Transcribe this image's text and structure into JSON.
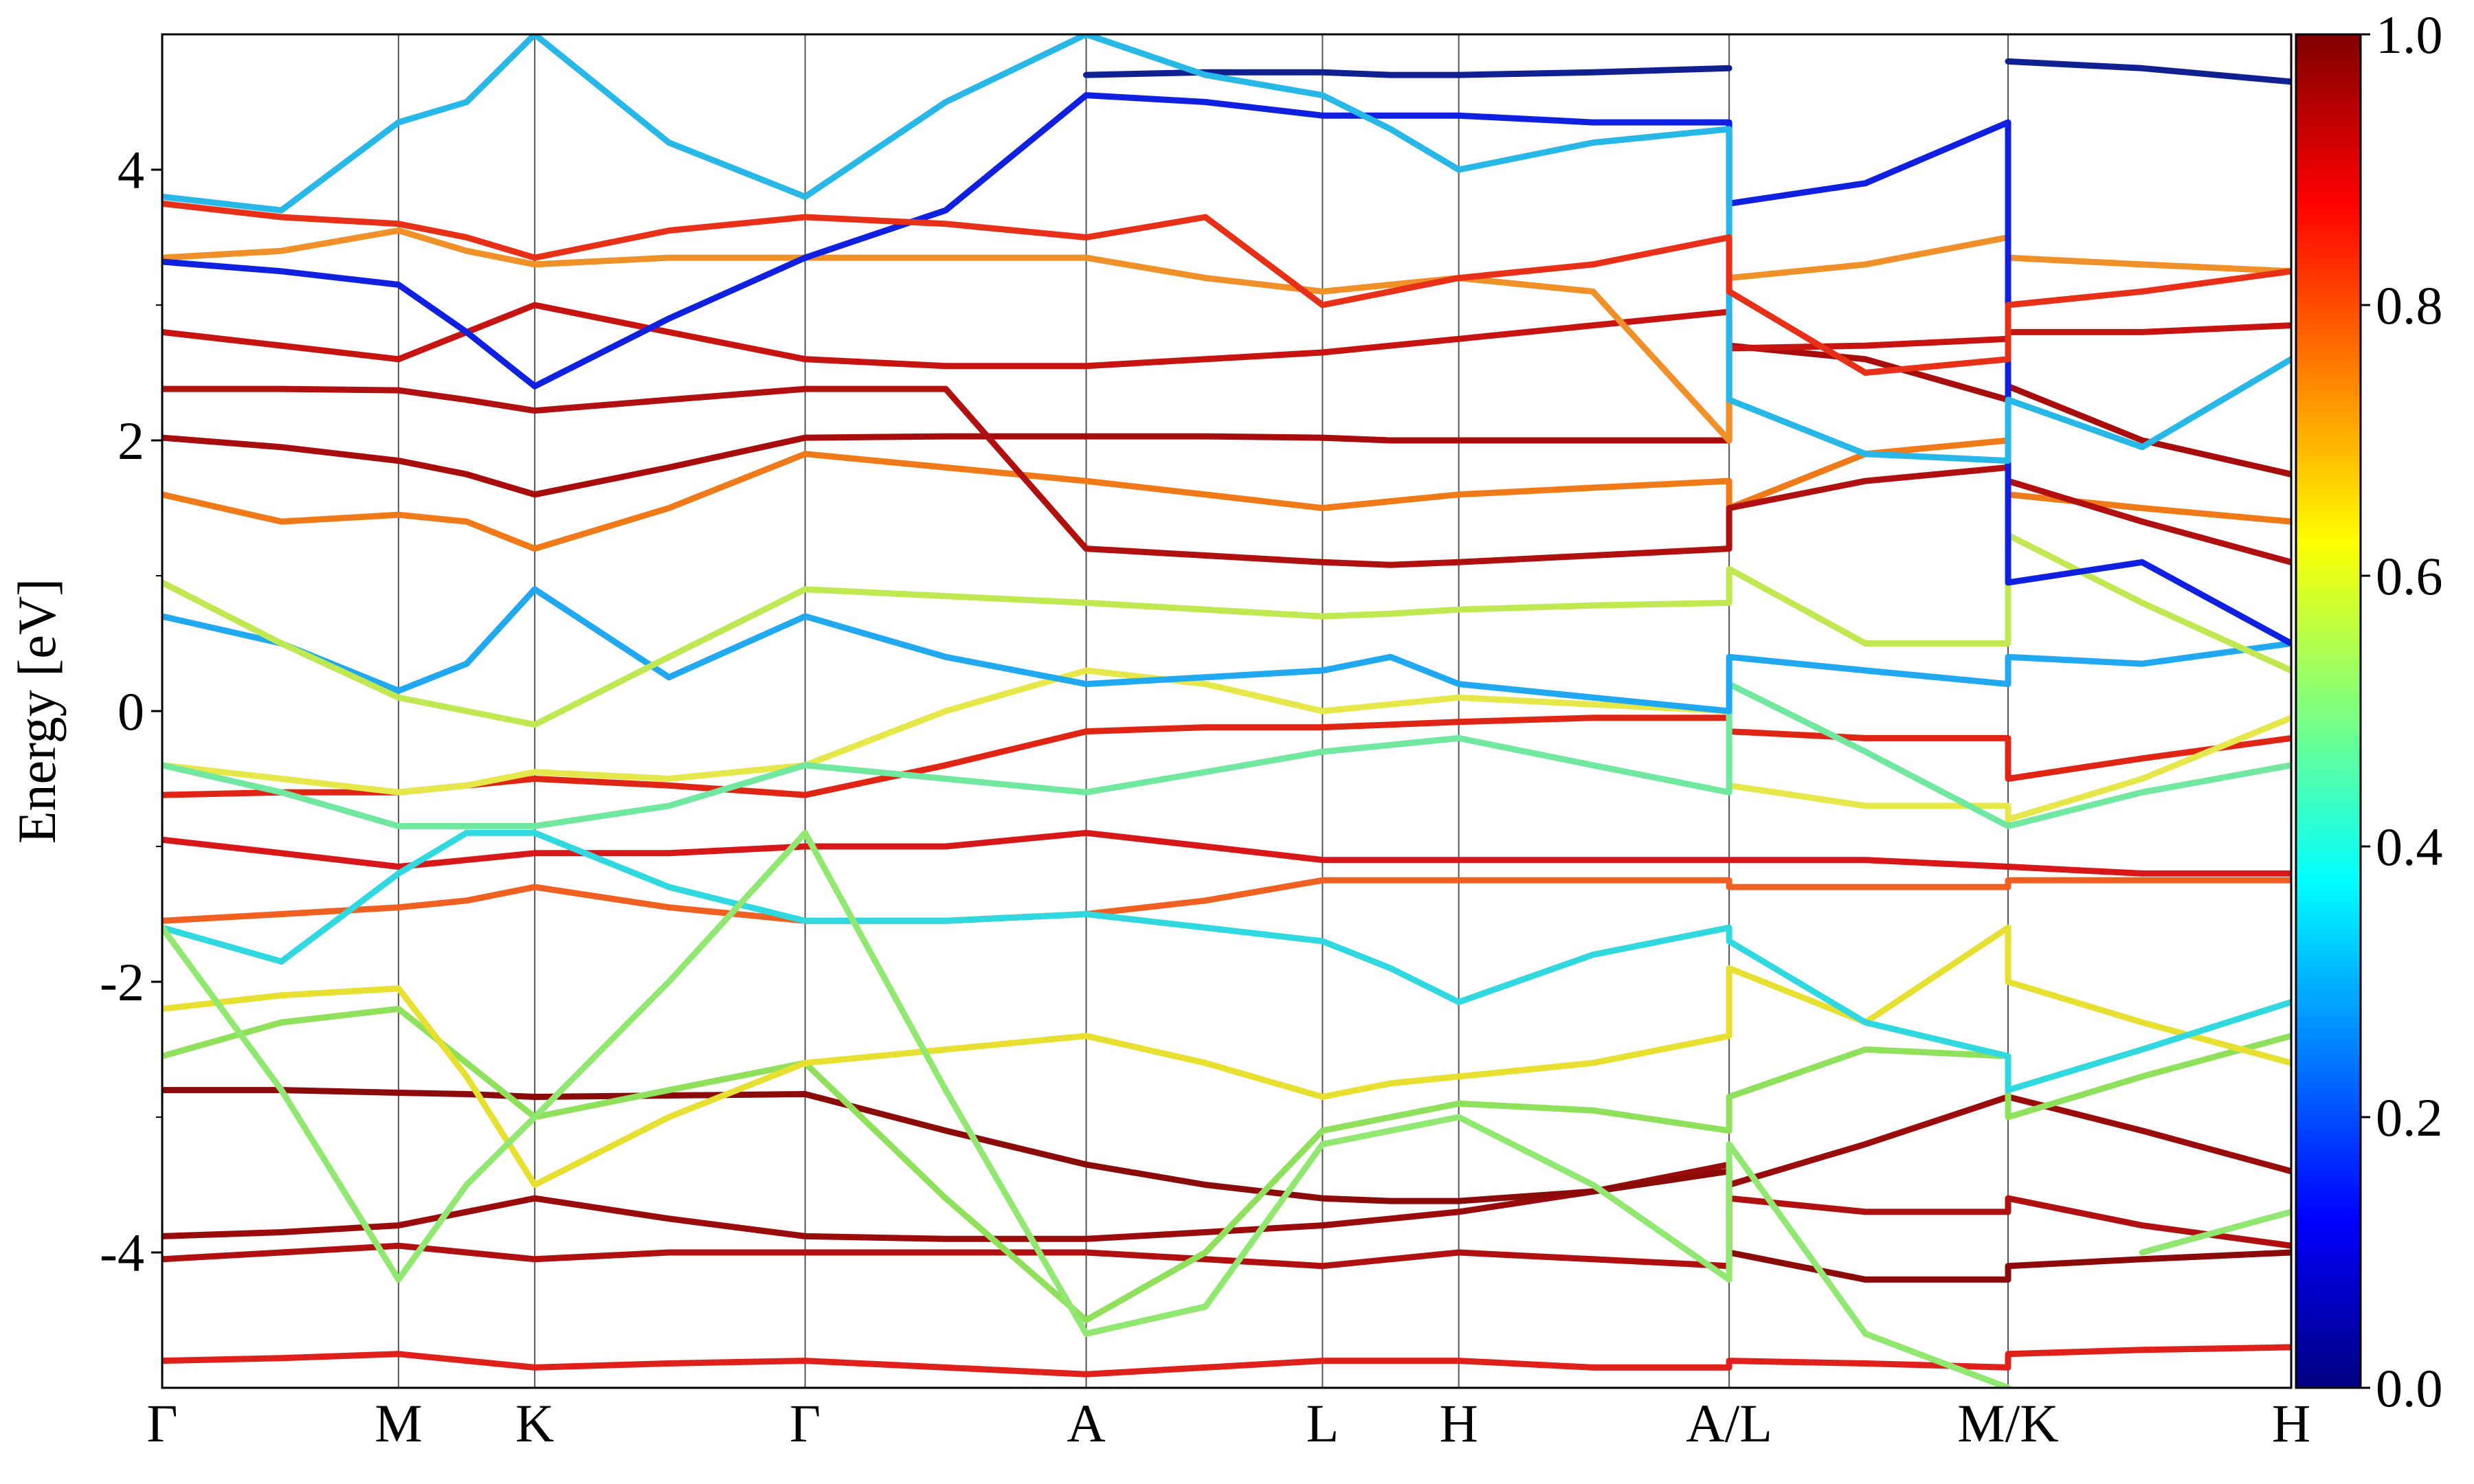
{
  "chart_data": {
    "type": "line",
    "ylabel": "Energy [eV]",
    "xlim": [
      0,
      1
    ],
    "xticks": [
      {
        "value": 0,
        "label": "Γ"
      },
      {
        "value": 0.111,
        "label": "M"
      },
      {
        "value": 0.175,
        "label": "K"
      },
      {
        "value": 0.302,
        "label": "Γ"
      },
      {
        "value": 0.434,
        "label": "A"
      },
      {
        "value": 0.545,
        "label": "L"
      },
      {
        "value": 0.609,
        "label": "H"
      },
      {
        "value": 0.736,
        "label": "A/L"
      },
      {
        "value": 0.867,
        "label": "M/K"
      },
      {
        "value": 1,
        "label": "H"
      }
    ],
    "ylim": [
      -5,
      5
    ],
    "yticks": [
      -4,
      -2,
      0,
      2,
      4
    ],
    "y_minor_ticks": [
      -3,
      -1,
      1,
      3
    ],
    "kpath_lines": true,
    "x": [
      0,
      0.056,
      0.111,
      0.143,
      0.175,
      0.238,
      0.302,
      0.368,
      0.434,
      0.49,
      0.545,
      0.577,
      0.609,
      0.672,
      0.736,
      0.736,
      0.8,
      0.867,
      0.867,
      0.93,
      1
    ],
    "series": [
      {
        "color": "#b01010",
        "values": [
          -4.05,
          -4.0,
          -3.95,
          -4.0,
          -4.05,
          -4.0,
          -4.0,
          -4.0,
          -4.0,
          -4.05,
          -4.1,
          -4.05,
          -4.0,
          -4.05,
          -4.1,
          -3.6,
          -3.7,
          -3.7,
          -3.6,
          -3.8,
          -3.95
        ]
      },
      {
        "color": "#9a0b0b",
        "values": [
          -3.88,
          -3.85,
          -3.8,
          -3.7,
          -3.6,
          -3.75,
          -3.88,
          -3.9,
          -3.9,
          -3.85,
          -3.8,
          -3.75,
          -3.7,
          -3.55,
          -3.35,
          -3.5,
          -3.2,
          -2.85,
          -2.85,
          -3.1,
          -3.4
        ]
      },
      {
        "color": "#8b0a0a",
        "values": [
          -2.8,
          -2.8,
          -2.82,
          -2.83,
          -2.85,
          -2.84,
          -2.83,
          -3.1,
          -3.35,
          -3.5,
          -3.6,
          -3.62,
          -3.62,
          -3.55,
          -3.4,
          -4.0,
          -4.2,
          -4.2,
          -4.1,
          -4.05,
          -4.0
        ]
      },
      {
        "color": "#e0201a",
        "values": [
          -4.8,
          -4.78,
          -4.75,
          -4.8,
          -4.85,
          -4.82,
          -4.8,
          -4.85,
          -4.9,
          -4.85,
          -4.8,
          -4.8,
          -4.8,
          -4.85,
          -4.85,
          -4.8,
          -4.82,
          -4.85,
          -4.75,
          -4.72,
          -4.7
        ]
      },
      {
        "color": "#8fe05a",
        "values": [
          -2.55,
          -2.3,
          -2.2,
          -2.6,
          -3.0,
          -2.8,
          -2.6,
          -3.6,
          -4.5,
          -4.0,
          -3.1,
          -3.0,
          -2.9,
          -2.95,
          -3.1,
          -2.85,
          -2.5,
          -2.55,
          -3.0,
          -2.7,
          -2.4
        ]
      },
      {
        "color": "#e8e030",
        "values": [
          -2.2,
          -2.1,
          -2.05,
          -2.7,
          -3.5,
          -3.0,
          -2.6,
          -2.5,
          -2.4,
          -2.6,
          -2.85,
          -2.75,
          -2.7,
          -2.6,
          -2.4,
          -1.9,
          -2.3,
          -1.6,
          -2.0,
          -2.3,
          -2.6
        ]
      },
      {
        "color": "#f06020",
        "values": [
          -1.55,
          -1.5,
          -1.45,
          -1.4,
          -1.3,
          -1.45,
          -1.55,
          -1.55,
          -1.5,
          -1.4,
          -1.25,
          -1.25,
          -1.25,
          -1.25,
          -1.25,
          -1.3,
          -1.3,
          -1.3,
          -1.25,
          -1.25,
          -1.25
        ]
      },
      {
        "color": "#d81818",
        "values": [
          -0.95,
          -1.05,
          -1.15,
          -1.1,
          -1.05,
          -1.05,
          -1.0,
          -1.0,
          -0.9,
          -1.0,
          -1.1,
          -1.1,
          -1.1,
          -1.1,
          -1.1,
          -1.1,
          -1.1,
          -1.15,
          -1.15,
          -1.2,
          -1.2
        ]
      },
      {
        "color": "#30d8e0",
        "values": [
          -1.6,
          -1.85,
          -1.2,
          -0.9,
          -0.9,
          -1.3,
          -1.55,
          -1.55,
          -1.5,
          -1.6,
          -1.7,
          -1.9,
          -2.15,
          -1.8,
          -1.6,
          -1.7,
          -2.3,
          -2.55,
          -2.8,
          -2.5,
          -2.15
        ]
      },
      {
        "color": "#e02515",
        "values": [
          -0.62,
          -0.6,
          -0.6,
          -0.55,
          -0.5,
          -0.55,
          -0.62,
          -0.4,
          -0.15,
          -0.12,
          -0.12,
          -0.1,
          -0.08,
          -0.05,
          -0.05,
          -0.15,
          -0.2,
          -0.2,
          -0.5,
          -0.35,
          -0.2
        ]
      },
      {
        "color": "#e6e84a",
        "values": [
          -0.4,
          -0.5,
          -0.6,
          -0.55,
          -0.45,
          -0.5,
          -0.4,
          0.0,
          0.3,
          0.2,
          0.0,
          0.05,
          0.1,
          0.05,
          0.0,
          -0.55,
          -0.7,
          -0.7,
          -0.8,
          -0.5,
          -0.05
        ]
      },
      {
        "color": "#70e8a0",
        "values": [
          -0.4,
          -0.6,
          -0.85,
          -0.85,
          -0.85,
          -0.7,
          -0.4,
          -0.5,
          -0.6,
          -0.45,
          -0.3,
          -0.25,
          -0.2,
          -0.4,
          -0.6,
          0.2,
          -0.3,
          -0.85,
          -0.85,
          -0.6,
          -0.4
        ]
      },
      {
        "color": "#20a8f0",
        "values": [
          0.7,
          0.5,
          0.15,
          0.35,
          0.9,
          0.25,
          0.7,
          0.4,
          0.2,
          0.25,
          0.3,
          0.4,
          0.2,
          0.1,
          0.0,
          0.4,
          0.3,
          0.2,
          0.4,
          0.35,
          0.5
        ]
      },
      {
        "color": "#c0e850",
        "values": [
          0.95,
          0.5,
          0.1,
          0.0,
          -0.1,
          0.4,
          0.9,
          0.85,
          0.8,
          0.75,
          0.7,
          0.72,
          0.75,
          0.78,
          0.8,
          1.05,
          0.5,
          0.5,
          1.3,
          0.8,
          0.3
        ]
      },
      {
        "color": "#f07a18",
        "values": [
          1.6,
          1.4,
          1.45,
          1.4,
          1.2,
          1.5,
          1.9,
          1.8,
          1.7,
          1.6,
          1.5,
          1.55,
          1.6,
          1.65,
          1.7,
          1.5,
          1.9,
          2.0,
          1.6,
          1.5,
          1.4
        ]
      },
      {
        "color": "#a80c0c",
        "values": [
          2.02,
          1.95,
          1.85,
          1.75,
          1.6,
          1.8,
          2.02,
          2.03,
          2.03,
          2.03,
          2.02,
          2.0,
          2.0,
          2.0,
          2.0,
          2.7,
          2.6,
          2.3,
          2.4,
          2.0,
          1.75
        ]
      },
      {
        "color": "#b01010",
        "values": [
          2.38,
          2.38,
          2.37,
          2.3,
          2.22,
          2.3,
          2.38,
          2.38,
          1.2,
          1.15,
          1.1,
          1.08,
          1.1,
          1.15,
          1.2,
          1.5,
          1.7,
          1.8,
          1.7,
          1.4,
          1.1
        ]
      },
      {
        "color": "#c81410",
        "values": [
          2.8,
          2.7,
          2.6,
          2.8,
          3.0,
          2.8,
          2.6,
          2.55,
          2.55,
          2.6,
          2.65,
          2.7,
          2.75,
          2.85,
          2.95,
          2.68,
          2.7,
          2.75,
          2.8,
          2.8,
          2.85
        ]
      },
      {
        "color": "#f09028",
        "values": [
          3.35,
          3.4,
          3.55,
          3.4,
          3.3,
          3.35,
          3.35,
          3.35,
          3.35,
          3.2,
          3.1,
          3.15,
          3.2,
          3.1,
          2.0,
          3.2,
          3.3,
          3.5,
          3.35,
          3.3,
          3.25
        ]
      },
      {
        "color": "#1020e0",
        "values": [
          3.32,
          3.25,
          3.15,
          2.8,
          2.4,
          2.9,
          3.35,
          3.7,
          4.55,
          4.5,
          4.4,
          4.4,
          4.4,
          4.35,
          4.35,
          3.75,
          3.9,
          4.35,
          0.95,
          1.1,
          0.5
        ]
      },
      {
        "color": "#102090",
        "values": [
          null,
          null,
          null,
          null,
          null,
          null,
          null,
          null,
          4.7,
          4.72,
          4.72,
          4.7,
          4.7,
          4.72,
          4.75,
          null,
          null,
          null,
          4.8,
          4.75,
          4.65
        ]
      },
      {
        "color": "#28b8e8",
        "values": [
          3.8,
          3.7,
          4.35,
          4.5,
          5.0,
          4.2,
          3.8,
          4.5,
          5.0,
          4.7,
          4.55,
          4.3,
          4.0,
          4.2,
          4.3,
          2.3,
          1.9,
          1.85,
          2.3,
          1.95,
          2.6
        ]
      },
      {
        "color": "#e83018",
        "values": [
          3.75,
          3.65,
          3.6,
          3.5,
          3.35,
          3.55,
          3.65,
          3.6,
          3.5,
          3.65,
          3.0,
          3.1,
          3.2,
          3.3,
          3.5,
          3.1,
          2.5,
          2.6,
          3.0,
          3.1,
          3.25
        ]
      },
      {
        "color": "#90e870",
        "values": [
          -1.6,
          -2.8,
          -4.2,
          -3.5,
          -3.0,
          -2.0,
          -0.9,
          -2.8,
          -4.6,
          -4.4,
          -3.2,
          -3.1,
          -3.0,
          -3.5,
          -4.2,
          -3.2,
          -4.6,
          -5.0,
          null,
          -4.0,
          -3.7
        ]
      }
    ],
    "colorbar": {
      "colormap": "jet",
      "lim": [
        0,
        1
      ],
      "ticks": [
        {
          "value": 0,
          "label": "0.0"
        },
        {
          "value": 0.2,
          "label": "0.2"
        },
        {
          "value": 0.4,
          "label": "0.4"
        },
        {
          "value": 0.6,
          "label": "0.6"
        },
        {
          "value": 0.8,
          "label": "0.8"
        },
        {
          "value": 1,
          "label": "1.0"
        }
      ]
    }
  }
}
